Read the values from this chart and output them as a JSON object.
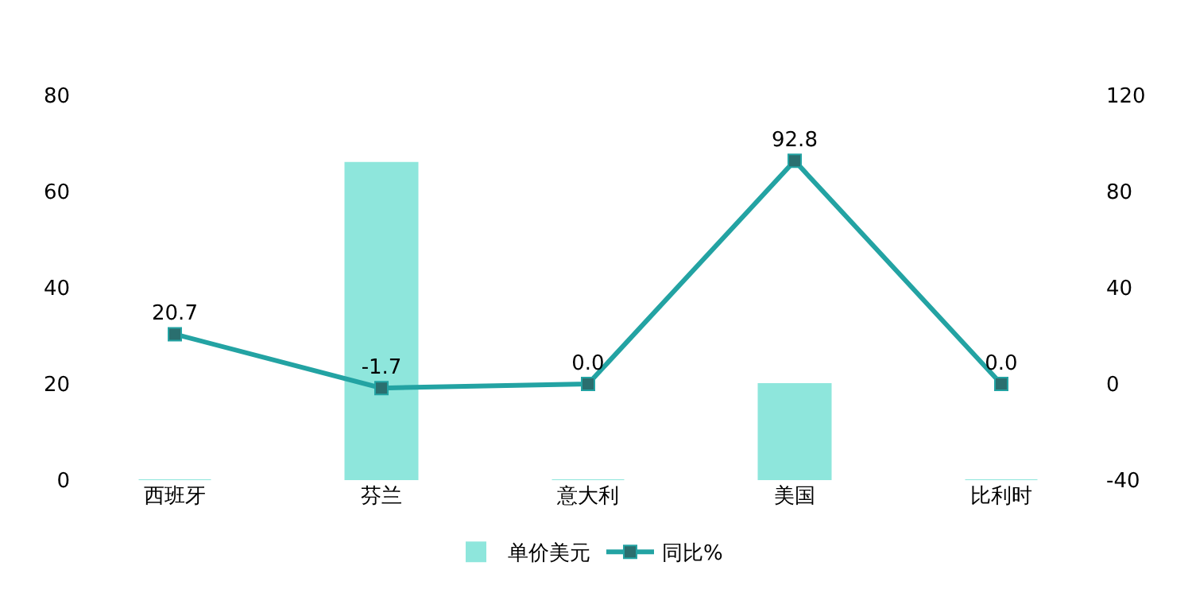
{
  "chart_data": {
    "type": "bar",
    "categories": [
      "西班牙",
      "芬兰",
      "意大利",
      "美国",
      "比利时"
    ],
    "series": [
      {
        "name": "单价美元",
        "color": "#8ee6dc",
        "values": [
          0,
          66,
          0,
          20,
          0
        ]
      },
      {
        "name": "同比%",
        "type": "line",
        "axis": "y2",
        "color": "#23a3a3",
        "marker": "square",
        "values": [
          20.7,
          -1.7,
          0.0,
          92.8,
          0.0
        ],
        "value_labels": [
          "20.7",
          "-1.7",
          "0.0",
          "92.8",
          "0.0"
        ]
      }
    ],
    "ylim": [
      0,
      80
    ],
    "yticks": [
      0,
      20,
      40,
      60,
      80
    ],
    "y2lim": [
      -40,
      120
    ],
    "y2ticks": [
      -40,
      0,
      40,
      80,
      120
    ],
    "legend": "bottom"
  }
}
